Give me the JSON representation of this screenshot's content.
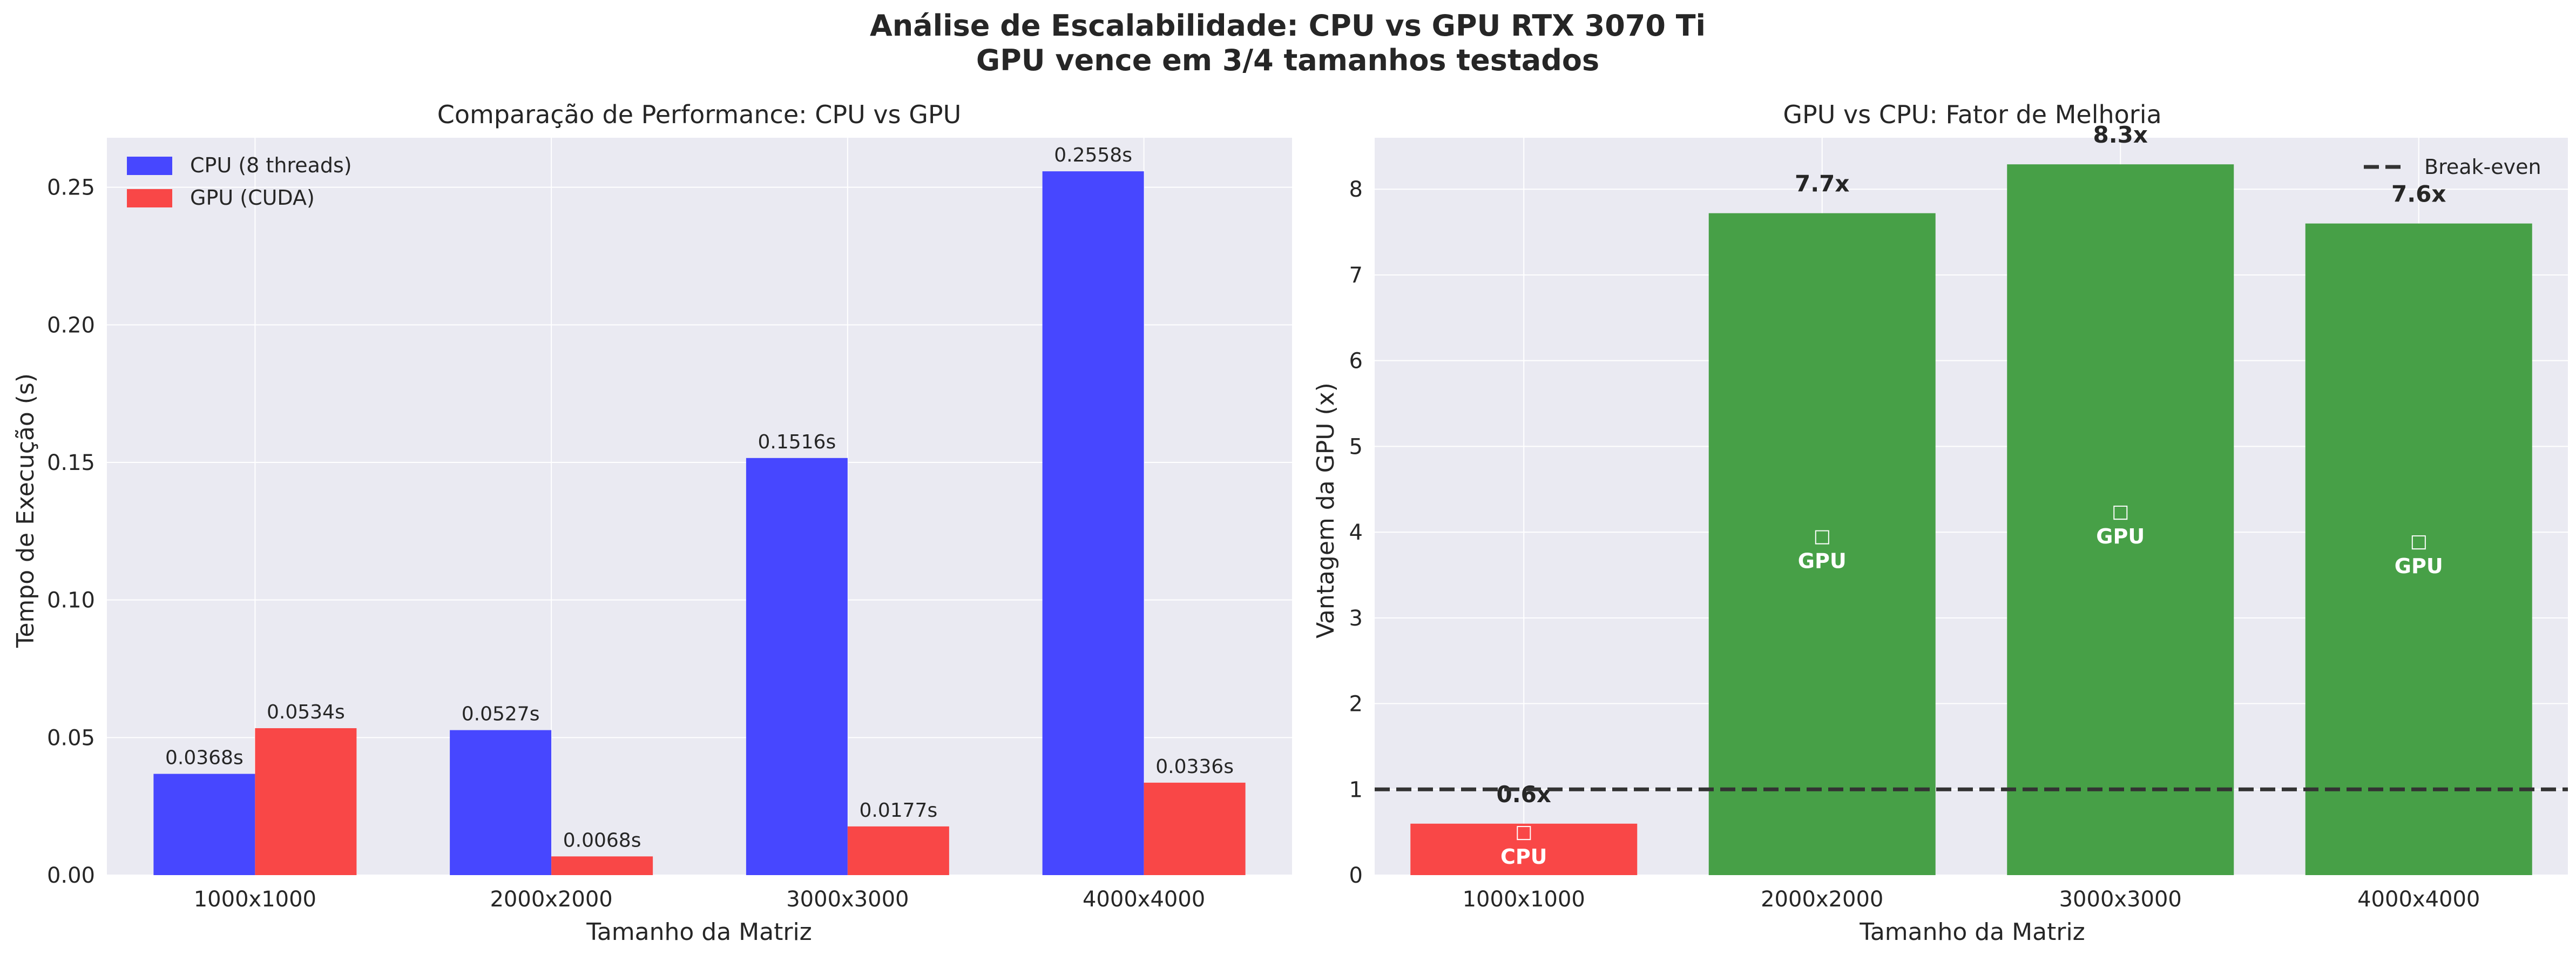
{
  "figure": {
    "title_line1": "Análise de Escalabilidade: CPU vs GPU RTX 3070 Ti",
    "title_line2": "GPU vence em 3/4 tamanhos testados"
  },
  "colors": {
    "background": "#ffffff",
    "axes_bg": "#eaeaf2",
    "grid": "#ffffff",
    "text": "#262626",
    "cpu": "#4747ff",
    "gpu_cuda": "#f94747",
    "gpu_win": "#47a047",
    "cpu_win": "#f94747",
    "break_even": "#333333"
  },
  "chart_data": [
    {
      "type": "bar",
      "title": "Comparação de Performance: CPU vs GPU",
      "xlabel": "Tamanho da Matriz",
      "ylabel": "Tempo de Execução (s)",
      "categories": [
        "1000x1000",
        "2000x2000",
        "3000x3000",
        "4000x4000"
      ],
      "series": [
        {
          "name": "CPU (8 threads)",
          "values": [
            0.0368,
            0.0527,
            0.1516,
            0.2558
          ],
          "labels": [
            "0.0368s",
            "0.0527s",
            "0.1516s",
            "0.2558s"
          ]
        },
        {
          "name": "GPU (CUDA)",
          "values": [
            0.0534,
            0.0068,
            0.0177,
            0.0336
          ],
          "labels": [
            "0.0534s",
            "0.0068s",
            "0.0177s",
            "0.0336s"
          ]
        }
      ],
      "ylim": [
        0,
        0.268
      ],
      "yticks": [
        0.0,
        0.05,
        0.1,
        0.15,
        0.2,
        0.25
      ],
      "ytick_labels": [
        "0.00",
        "0.05",
        "0.10",
        "0.15",
        "0.20",
        "0.25"
      ],
      "grid": true,
      "legend": "top-left"
    },
    {
      "type": "bar",
      "title": "GPU vs CPU: Fator de Melhoria",
      "xlabel": "Tamanho da Matriz",
      "ylabel": "Vantagem da GPU (x)",
      "categories": [
        "1000x1000",
        "2000x2000",
        "3000x3000",
        "4000x4000"
      ],
      "values": [
        0.6,
        7.72,
        8.29,
        7.6
      ],
      "value_labels": [
        "0.6x",
        "7.7x",
        "8.3x",
        "7.6x"
      ],
      "winner_labels": [
        "CPU",
        "GPU",
        "GPU",
        "GPU"
      ],
      "winner_icon": "□",
      "ylim": [
        0,
        8.6
      ],
      "yticks": [
        0,
        1,
        2,
        3,
        4,
        5,
        6,
        7,
        8
      ],
      "ytick_labels": [
        "0",
        "1",
        "2",
        "3",
        "4",
        "5",
        "6",
        "7",
        "8"
      ],
      "reference_line": {
        "y": 1,
        "label": "Break-even"
      },
      "grid": true,
      "legend": "top-right"
    }
  ]
}
